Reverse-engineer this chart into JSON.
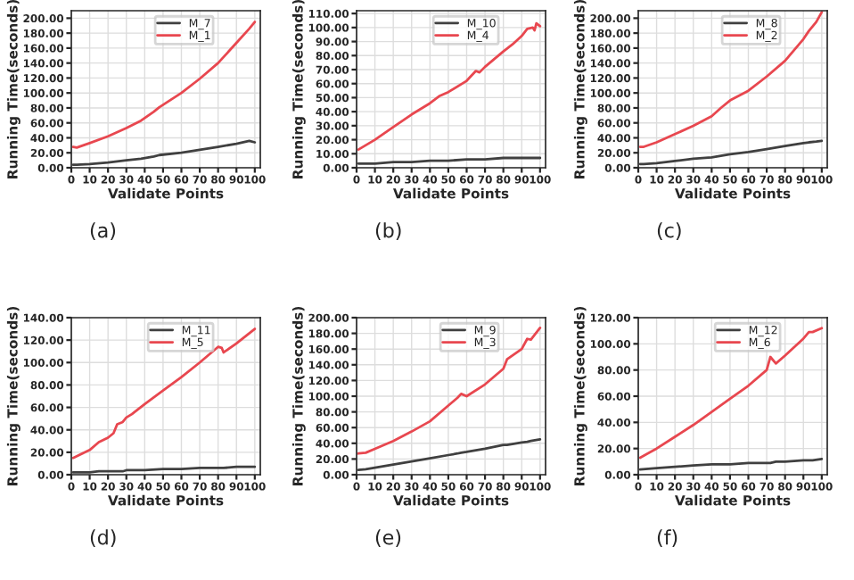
{
  "chart_data": [
    {
      "type": "line",
      "xlabel": "Validate Points",
      "ylabel": "Running Time(seconds)",
      "annotations": [
        "(a)"
      ],
      "grid": true,
      "legend": "top right",
      "xlim": [
        0,
        103
      ],
      "ylim": [
        0,
        210
      ],
      "xticks": [
        0,
        10,
        20,
        30,
        40,
        50,
        60,
        70,
        80,
        90,
        100
      ],
      "yticks": [
        {
          "value": 0,
          "label": "0.00"
        },
        {
          "value": 20,
          "label": "20.00"
        },
        {
          "value": 40,
          "label": "40.00"
        },
        {
          "value": 60,
          "label": "60.00"
        },
        {
          "value": 80,
          "label": "80.00"
        },
        {
          "value": 100,
          "label": "100.00"
        },
        {
          "value": 120,
          "label": "120.00"
        },
        {
          "value": 140,
          "label": "140.00"
        },
        {
          "value": 160,
          "label": "160.00"
        },
        {
          "value": 180,
          "label": "180.00"
        },
        {
          "value": 200,
          "label": "200.00"
        }
      ],
      "x": [
        1,
        3,
        10,
        20,
        30,
        38,
        45,
        48,
        60,
        70,
        80,
        90,
        97,
        100
      ],
      "series": [
        {
          "name": "M_7",
          "color": "#404040",
          "values": [
            4,
            4,
            5,
            7,
            10,
            12,
            15,
            17,
            20,
            24,
            28,
            32,
            36,
            34
          ]
        },
        {
          "name": "M_1",
          "color": "#e8474f",
          "values": [
            28,
            27,
            33,
            42,
            53,
            63,
            75,
            81,
            100,
            119,
            140,
            167,
            186,
            195
          ]
        }
      ]
    },
    {
      "type": "line",
      "xlabel": "Validate Points",
      "ylabel": "Running Time(seconds)",
      "annotations": [
        "(b)"
      ],
      "grid": true,
      "legend": "top right",
      "xlim": [
        0,
        103
      ],
      "ylim": [
        0,
        112
      ],
      "xticks": [
        0,
        10,
        20,
        30,
        40,
        50,
        60,
        70,
        80,
        90,
        100
      ],
      "yticks": [
        {
          "value": 0,
          "label": "0.00"
        },
        {
          "value": 10,
          "label": "10.00"
        },
        {
          "value": 20,
          "label": "20.00"
        },
        {
          "value": 30,
          "label": "30.00"
        },
        {
          "value": 40,
          "label": "40.00"
        },
        {
          "value": 50,
          "label": "50.00"
        },
        {
          "value": 60,
          "label": "60.00"
        },
        {
          "value": 70,
          "label": "70.00"
        },
        {
          "value": 80,
          "label": "80.00"
        },
        {
          "value": 90,
          "label": "90.00"
        },
        {
          "value": 100,
          "label": "100.00"
        },
        {
          "value": 110,
          "label": "110.00"
        }
      ],
      "x": [
        1,
        10,
        20,
        30,
        40,
        45,
        50,
        60,
        65,
        67,
        70,
        80,
        85,
        90,
        93,
        96,
        97,
        98,
        100
      ],
      "series": [
        {
          "name": "M_10",
          "color": "#404040",
          "values": [
            3,
            3,
            4,
            4,
            5,
            5,
            5,
            6,
            6,
            6,
            6,
            7,
            7,
            7,
            7,
            7,
            7,
            7,
            7
          ]
        },
        {
          "name": "M_4",
          "color": "#e8474f",
          "values": [
            13,
            20,
            29,
            38,
            46,
            51,
            54,
            62,
            69,
            68,
            72,
            83,
            88,
            94,
            99,
            100,
            98,
            103,
            101
          ]
        }
      ]
    },
    {
      "type": "line",
      "xlabel": "Validate Points",
      "ylabel": "Running Time(seconds)",
      "annotations": [
        "(c)"
      ],
      "grid": true,
      "legend": "top right",
      "xlim": [
        0,
        103
      ],
      "ylim": [
        0,
        210
      ],
      "xticks": [
        0,
        10,
        20,
        30,
        40,
        50,
        60,
        70,
        80,
        90,
        100
      ],
      "yticks": [
        {
          "value": 0,
          "label": "0.00"
        },
        {
          "value": 20,
          "label": "20.00"
        },
        {
          "value": 40,
          "label": "40.00"
        },
        {
          "value": 60,
          "label": "60.00"
        },
        {
          "value": 80,
          "label": "80.00"
        },
        {
          "value": 100,
          "label": "100.00"
        },
        {
          "value": 120,
          "label": "120.00"
        },
        {
          "value": 140,
          "label": "140.00"
        },
        {
          "value": 160,
          "label": "160.00"
        },
        {
          "value": 180,
          "label": "180.00"
        },
        {
          "value": 200,
          "label": "200.00"
        }
      ],
      "x": [
        1,
        3,
        10,
        20,
        30,
        40,
        45,
        50,
        53,
        60,
        70,
        80,
        90,
        93,
        97,
        100
      ],
      "series": [
        {
          "name": "M_8",
          "color": "#404040",
          "values": [
            5,
            5,
            6,
            9,
            12,
            14,
            16,
            18,
            19,
            21,
            25,
            29,
            33,
            34,
            35,
            36
          ]
        },
        {
          "name": "M_2",
          "color": "#e8474f",
          "values": [
            28,
            28,
            34,
            45,
            56,
            69,
            80,
            90,
            94,
            103,
            122,
            143,
            172,
            183,
            195,
            208
          ]
        }
      ]
    },
    {
      "type": "line",
      "xlabel": "Validate Points",
      "ylabel": "Running Time(seconds)",
      "annotations": [
        "(d)"
      ],
      "grid": true,
      "legend": "top right",
      "xlim": [
        0,
        103
      ],
      "ylim": [
        0,
        140
      ],
      "xticks": [
        0,
        10,
        20,
        30,
        40,
        50,
        60,
        70,
        80,
        90,
        100
      ],
      "yticks": [
        {
          "value": 0,
          "label": "0.00"
        },
        {
          "value": 20,
          "label": "20.00"
        },
        {
          "value": 40,
          "label": "40.00"
        },
        {
          "value": 60,
          "label": "60.00"
        },
        {
          "value": 80,
          "label": "80.00"
        },
        {
          "value": 100,
          "label": "100.00"
        },
        {
          "value": 120,
          "label": "120.00"
        },
        {
          "value": 140,
          "label": "140.00"
        }
      ],
      "x": [
        1,
        10,
        15,
        20,
        23,
        25,
        28,
        30,
        33,
        40,
        50,
        60,
        70,
        80,
        82,
        83,
        90,
        100
      ],
      "series": [
        {
          "name": "M_11",
          "color": "#404040",
          "values": [
            2,
            2,
            3,
            3,
            3,
            3,
            3,
            4,
            4,
            4,
            5,
            5,
            6,
            6,
            6,
            6,
            7,
            7
          ]
        },
        {
          "name": "M_5",
          "color": "#e8474f",
          "values": [
            15,
            22,
            29,
            33,
            37,
            45,
            47,
            51,
            54,
            63,
            75,
            87,
            100,
            114,
            113,
            109,
            117,
            130
          ]
        }
      ]
    },
    {
      "type": "line",
      "xlabel": "Validate Points",
      "ylabel": "Running Time(seconds)",
      "annotations": [
        "(e)"
      ],
      "grid": true,
      "legend": "top right",
      "xlim": [
        0,
        103
      ],
      "ylim": [
        0,
        200
      ],
      "xticks": [
        0,
        10,
        20,
        30,
        40,
        50,
        60,
        70,
        80,
        90,
        100
      ],
      "yticks": [
        {
          "value": 0,
          "label": "0.00"
        },
        {
          "value": 20,
          "label": "20.00"
        },
        {
          "value": 40,
          "label": "40.00"
        },
        {
          "value": 60,
          "label": "60.00"
        },
        {
          "value": 80,
          "label": "80.00"
        },
        {
          "value": 100,
          "label": "100.00"
        },
        {
          "value": 120,
          "label": "120.00"
        },
        {
          "value": 140,
          "label": "140.00"
        },
        {
          "value": 160,
          "label": "160.00"
        },
        {
          "value": 180,
          "label": "180.00"
        },
        {
          "value": 200,
          "label": "200.00"
        }
      ],
      "x": [
        1,
        5,
        10,
        20,
        30,
        40,
        50,
        55,
        57,
        60,
        70,
        80,
        82,
        90,
        93,
        95,
        100
      ],
      "series": [
        {
          "name": "M_9",
          "color": "#404040",
          "values": [
            6,
            7,
            9,
            13,
            17,
            21,
            25,
            27,
            28,
            29,
            33,
            38,
            38,
            41,
            42,
            43,
            45
          ]
        },
        {
          "name": "M_3",
          "color": "#e8474f",
          "values": [
            27,
            28,
            33,
            43,
            55,
            68,
            88,
            98,
            103,
            100,
            115,
            135,
            147,
            160,
            173,
            172,
            187
          ]
        }
      ]
    },
    {
      "type": "line",
      "xlabel": "Validate Points",
      "ylabel": "Running Time(seconds)",
      "annotations": [
        "(f)"
      ],
      "grid": true,
      "legend": "top right",
      "xlim": [
        0,
        103
      ],
      "ylim": [
        0,
        120
      ],
      "xticks": [
        0,
        10,
        20,
        30,
        40,
        50,
        60,
        70,
        80,
        90,
        100
      ],
      "yticks": [
        {
          "value": 0,
          "label": "0.00"
        },
        {
          "value": 20,
          "label": "20.00"
        },
        {
          "value": 40,
          "label": "40.00"
        },
        {
          "value": 60,
          "label": "60.00"
        },
        {
          "value": 80,
          "label": "80.00"
        },
        {
          "value": 100,
          "label": "100.00"
        },
        {
          "value": 120,
          "label": "120.00"
        }
      ],
      "x": [
        1,
        10,
        20,
        30,
        40,
        50,
        60,
        70,
        72,
        75,
        80,
        90,
        93,
        95,
        100
      ],
      "series": [
        {
          "name": "M_12",
          "color": "#404040",
          "values": [
            4,
            5,
            6,
            7,
            8,
            8,
            9,
            9,
            9,
            10,
            10,
            11,
            11,
            11,
            12
          ]
        },
        {
          "name": "M_6",
          "color": "#e8474f",
          "values": [
            13,
            20,
            29,
            38,
            48,
            58,
            68,
            80,
            90,
            85,
            91,
            104,
            109,
            109,
            112
          ]
        }
      ]
    }
  ]
}
